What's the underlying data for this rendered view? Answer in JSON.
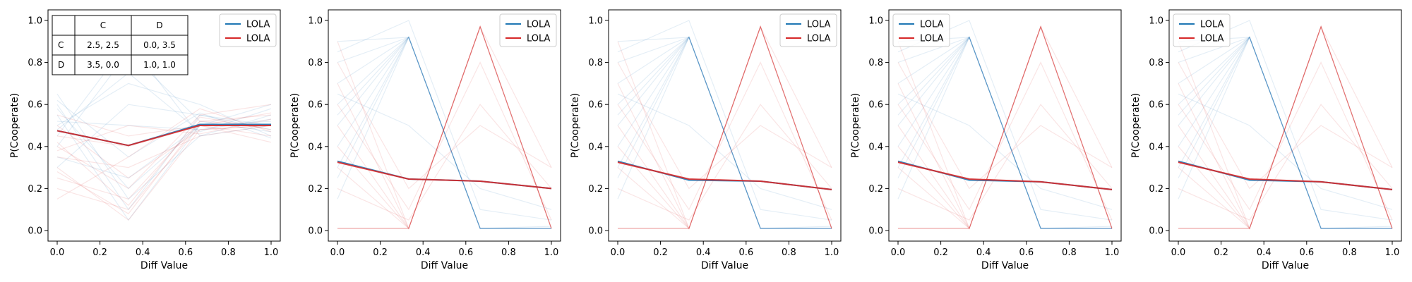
{
  "colors": {
    "blue": "#1f77b4",
    "red": "#d62728",
    "axis": "#000000"
  },
  "figure": {
    "panels": [
      {
        "ylabel": "P(Cooperate)",
        "xlabel": "Diff Value",
        "xticks": [
          "0.0",
          "0.2",
          "0.4",
          "0.6",
          "0.8",
          "1.0"
        ],
        "yticks": [
          "0.0",
          "0.2",
          "0.4",
          "0.6",
          "0.8",
          "1.0"
        ],
        "legend": [
          "LOLA",
          "LOLA"
        ]
      },
      {
        "ylabel": "P(Cooperate)",
        "xlabel": "Diff Value",
        "xticks": [
          "0.0",
          "0.2",
          "0.4",
          "0.6",
          "0.8",
          "1.0"
        ],
        "yticks": [
          "0.0",
          "0.2",
          "0.4",
          "0.6",
          "0.8",
          "1.0"
        ],
        "legend": [
          "LOLA",
          "LOLA"
        ]
      },
      {
        "ylabel": "P(Cooperate)",
        "xlabel": "Diff Value",
        "xticks": [
          "0.0",
          "0.2",
          "0.4",
          "0.6",
          "0.8",
          "1.0"
        ],
        "yticks": [
          "0.0",
          "0.2",
          "0.4",
          "0.6",
          "0.8",
          "1.0"
        ],
        "legend": [
          "LOLA",
          "LOLA"
        ]
      },
      {
        "ylabel": "P(Cooperate)",
        "xlabel": "Diff Value",
        "xticks": [
          "0.0",
          "0.2",
          "0.4",
          "0.6",
          "0.8",
          "1.0"
        ],
        "yticks": [
          "0.0",
          "0.2",
          "0.4",
          "0.6",
          "0.8",
          "1.0"
        ],
        "legend": [
          "LOLA",
          "LOLA"
        ]
      },
      {
        "ylabel": "P(Cooperate)",
        "xlabel": "Diff Value",
        "xticks": [
          "0.0",
          "0.2",
          "0.4",
          "0.6",
          "0.8",
          "1.0"
        ],
        "yticks": [
          "0.0",
          "0.2",
          "0.4",
          "0.6",
          "0.8",
          "1.0"
        ],
        "legend": [
          "LOLA",
          "LOLA"
        ]
      }
    ],
    "payoff_table": {
      "col_headers": [
        "C",
        "D"
      ],
      "rows": [
        {
          "label": "C",
          "cells": [
            "2.5, 2.5",
            "0.0, 3.5"
          ]
        },
        {
          "label": "D",
          "cells": [
            "3.5, 0.0",
            "1.0, 1.0"
          ]
        }
      ]
    }
  },
  "chart_data": [
    {
      "type": "line",
      "title": "",
      "xlabel": "Diff Value",
      "ylabel": "P(Cooperate)",
      "xlim": [
        0,
        1
      ],
      "ylim": [
        0,
        1
      ],
      "x": [
        0.0,
        0.333,
        0.667,
        1.0
      ],
      "legend_placement": "top-right",
      "series": [
        {
          "name": "LOLA",
          "color": "#1f77b4",
          "values": [
            0.475,
            0.405,
            0.505,
            0.505
          ]
        },
        {
          "name": "LOLA",
          "color": "#d62728",
          "values": [
            0.475,
            0.405,
            0.5,
            0.5
          ]
        }
      ],
      "faint_runs": {
        "blue": [
          [
            0.55,
            0.05,
            0.5,
            0.5
          ],
          [
            0.6,
            0.1,
            0.55,
            0.48
          ],
          [
            0.45,
            0.9,
            0.45,
            0.55
          ],
          [
            0.5,
            0.7,
            0.6,
            0.45
          ],
          [
            0.35,
            0.25,
            0.5,
            0.6
          ],
          [
            0.65,
            0.15,
            0.45,
            0.5
          ],
          [
            0.4,
            0.85,
            0.52,
            0.47
          ],
          [
            0.52,
            0.5,
            0.48,
            0.53
          ],
          [
            0.3,
            0.6,
            0.55,
            0.5
          ],
          [
            0.58,
            0.2,
            0.5,
            0.52
          ],
          [
            0.48,
            0.75,
            0.47,
            0.58
          ],
          [
            0.62,
            0.35,
            0.56,
            0.44
          ]
        ],
        "red": [
          [
            0.3,
            0.05,
            0.48,
            0.5
          ],
          [
            0.2,
            0.1,
            0.5,
            0.45
          ],
          [
            0.4,
            0.2,
            0.55,
            0.6
          ],
          [
            0.35,
            0.3,
            0.45,
            0.5
          ],
          [
            0.25,
            0.15,
            0.52,
            0.55
          ],
          [
            0.45,
            0.4,
            0.5,
            0.42
          ],
          [
            0.5,
            0.25,
            0.48,
            0.5
          ],
          [
            0.15,
            0.35,
            0.58,
            0.47
          ],
          [
            0.38,
            0.5,
            0.46,
            0.53
          ],
          [
            0.28,
            0.08,
            0.52,
            0.5
          ],
          [
            0.55,
            0.45,
            0.5,
            0.56
          ],
          [
            0.42,
            0.12,
            0.54,
            0.48
          ]
        ]
      },
      "inset_table": true
    },
    {
      "type": "line",
      "title": "",
      "xlabel": "Diff Value",
      "ylabel": "P(Cooperate)",
      "xlim": [
        0,
        1
      ],
      "ylim": [
        0,
        1
      ],
      "x": [
        0.0,
        0.333,
        0.667,
        1.0
      ],
      "legend_placement": "top-right",
      "series": [
        {
          "name": "LOLA",
          "color": "#1f77b4",
          "values": [
            0.33,
            0.245,
            0.235,
            0.2
          ]
        },
        {
          "name": "LOLA",
          "color": "#d62728",
          "values": [
            0.325,
            0.245,
            0.235,
            0.2
          ]
        }
      ],
      "faint_runs": {
        "blue": [
          [
            0.9,
            0.92,
            0.01,
            0.01
          ],
          [
            0.8,
            0.92,
            0.01,
            0.01
          ],
          [
            0.7,
            0.92,
            0.01,
            0.01
          ],
          [
            0.5,
            0.92,
            0.01,
            0.01
          ],
          [
            0.3,
            0.92,
            0.01,
            0.01
          ],
          [
            0.15,
            0.92,
            0.01,
            0.01
          ],
          [
            0.6,
            0.92,
            0.01,
            0.02
          ],
          [
            0.4,
            0.92,
            0.01,
            0.01
          ],
          [
            0.85,
            1.0,
            0.1,
            0.05
          ],
          [
            0.25,
            0.92,
            0.01,
            0.01
          ],
          [
            0.65,
            0.5,
            0.2,
            0.1
          ],
          [
            0.55,
            0.92,
            0.01,
            0.01
          ]
        ],
        "red": [
          [
            0.01,
            0.01,
            0.97,
            0.01
          ],
          [
            0.01,
            0.01,
            0.97,
            0.01
          ],
          [
            0.01,
            0.01,
            0.97,
            0.3
          ],
          [
            0.3,
            0.01,
            0.97,
            0.01
          ],
          [
            0.5,
            0.01,
            0.97,
            0.01
          ],
          [
            0.7,
            0.01,
            0.97,
            0.01
          ],
          [
            0.2,
            0.05,
            0.6,
            0.2
          ],
          [
            0.9,
            0.01,
            0.97,
            0.01
          ],
          [
            0.6,
            0.1,
            0.8,
            0.05
          ],
          [
            0.4,
            0.01,
            0.97,
            0.01
          ],
          [
            0.01,
            0.01,
            0.97,
            0.01
          ],
          [
            0.8,
            0.2,
            0.5,
            0.3
          ]
        ]
      }
    },
    {
      "type": "line",
      "title": "",
      "xlabel": "Diff Value",
      "ylabel": "P(Cooperate)",
      "xlim": [
        0,
        1
      ],
      "ylim": [
        0,
        1
      ],
      "x": [
        0.0,
        0.333,
        0.667,
        1.0
      ],
      "legend_placement": "top-right",
      "series": [
        {
          "name": "LOLA",
          "color": "#1f77b4",
          "values": [
            0.33,
            0.24,
            0.235,
            0.195
          ]
        },
        {
          "name": "LOLA",
          "color": "#d62728",
          "values": [
            0.325,
            0.245,
            0.235,
            0.195
          ]
        }
      ],
      "faint_runs": {
        "blue": [
          [
            0.9,
            0.92,
            0.01,
            0.01
          ],
          [
            0.8,
            0.92,
            0.01,
            0.01
          ],
          [
            0.7,
            0.92,
            0.01,
            0.01
          ],
          [
            0.5,
            0.92,
            0.01,
            0.01
          ],
          [
            0.3,
            0.92,
            0.01,
            0.01
          ],
          [
            0.15,
            0.92,
            0.01,
            0.01
          ],
          [
            0.6,
            0.92,
            0.01,
            0.02
          ],
          [
            0.4,
            0.92,
            0.01,
            0.01
          ],
          [
            0.85,
            1.0,
            0.1,
            0.05
          ],
          [
            0.25,
            0.92,
            0.01,
            0.01
          ],
          [
            0.65,
            0.5,
            0.2,
            0.1
          ],
          [
            0.55,
            0.92,
            0.01,
            0.01
          ]
        ],
        "red": [
          [
            0.01,
            0.01,
            0.97,
            0.01
          ],
          [
            0.01,
            0.01,
            0.97,
            0.01
          ],
          [
            0.01,
            0.01,
            0.97,
            0.3
          ],
          [
            0.3,
            0.01,
            0.97,
            0.01
          ],
          [
            0.5,
            0.01,
            0.97,
            0.01
          ],
          [
            0.7,
            0.01,
            0.97,
            0.01
          ],
          [
            0.2,
            0.05,
            0.6,
            0.2
          ],
          [
            0.9,
            0.01,
            0.97,
            0.01
          ],
          [
            0.6,
            0.1,
            0.8,
            0.05
          ],
          [
            0.4,
            0.01,
            0.97,
            0.01
          ],
          [
            0.01,
            0.01,
            0.97,
            0.01
          ],
          [
            0.8,
            0.2,
            0.5,
            0.3
          ]
        ]
      }
    },
    {
      "type": "line",
      "title": "",
      "xlabel": "Diff Value",
      "ylabel": "P(Cooperate)",
      "xlim": [
        0,
        1
      ],
      "ylim": [
        0,
        1
      ],
      "x": [
        0.0,
        0.333,
        0.667,
        1.0
      ],
      "legend_placement": "top-left",
      "series": [
        {
          "name": "LOLA",
          "color": "#1f77b4",
          "values": [
            0.33,
            0.24,
            0.232,
            0.195
          ]
        },
        {
          "name": "LOLA",
          "color": "#d62728",
          "values": [
            0.325,
            0.245,
            0.232,
            0.195
          ]
        }
      ],
      "faint_runs": {
        "blue": [
          [
            0.9,
            0.92,
            0.01,
            0.01
          ],
          [
            0.8,
            0.92,
            0.01,
            0.01
          ],
          [
            0.7,
            0.92,
            0.01,
            0.01
          ],
          [
            0.5,
            0.92,
            0.01,
            0.01
          ],
          [
            0.3,
            0.92,
            0.01,
            0.01
          ],
          [
            0.15,
            0.92,
            0.01,
            0.01
          ],
          [
            0.6,
            0.92,
            0.01,
            0.02
          ],
          [
            0.4,
            0.92,
            0.01,
            0.01
          ],
          [
            0.85,
            1.0,
            0.1,
            0.05
          ],
          [
            0.25,
            0.92,
            0.01,
            0.01
          ],
          [
            0.65,
            0.5,
            0.2,
            0.1
          ],
          [
            0.55,
            0.92,
            0.01,
            0.01
          ]
        ],
        "red": [
          [
            0.01,
            0.01,
            0.97,
            0.01
          ],
          [
            0.01,
            0.01,
            0.97,
            0.01
          ],
          [
            0.01,
            0.01,
            0.97,
            0.3
          ],
          [
            0.3,
            0.01,
            0.97,
            0.01
          ],
          [
            0.5,
            0.01,
            0.97,
            0.01
          ],
          [
            0.7,
            0.01,
            0.97,
            0.01
          ],
          [
            0.2,
            0.05,
            0.6,
            0.2
          ],
          [
            0.9,
            0.01,
            0.97,
            0.01
          ],
          [
            0.6,
            0.1,
            0.8,
            0.05
          ],
          [
            0.4,
            0.01,
            0.97,
            0.01
          ],
          [
            0.01,
            0.01,
            0.97,
            0.01
          ],
          [
            0.8,
            0.2,
            0.5,
            0.3
          ]
        ]
      }
    },
    {
      "type": "line",
      "title": "",
      "xlabel": "Diff Value",
      "ylabel": "P(Cooperate)",
      "xlim": [
        0,
        1
      ],
      "ylim": [
        0,
        1
      ],
      "x": [
        0.0,
        0.333,
        0.667,
        1.0
      ],
      "legend_placement": "top-left",
      "series": [
        {
          "name": "LOLA",
          "color": "#1f77b4",
          "values": [
            0.33,
            0.24,
            0.232,
            0.195
          ]
        },
        {
          "name": "LOLA",
          "color": "#d62728",
          "values": [
            0.325,
            0.245,
            0.232,
            0.195
          ]
        }
      ],
      "faint_runs": {
        "blue": [
          [
            0.9,
            0.92,
            0.01,
            0.01
          ],
          [
            0.8,
            0.92,
            0.01,
            0.01
          ],
          [
            0.7,
            0.92,
            0.01,
            0.01
          ],
          [
            0.5,
            0.92,
            0.01,
            0.01
          ],
          [
            0.3,
            0.92,
            0.01,
            0.01
          ],
          [
            0.15,
            0.92,
            0.01,
            0.01
          ],
          [
            0.6,
            0.92,
            0.01,
            0.02
          ],
          [
            0.4,
            0.92,
            0.01,
            0.01
          ],
          [
            0.85,
            1.0,
            0.1,
            0.05
          ],
          [
            0.25,
            0.92,
            0.01,
            0.01
          ],
          [
            0.65,
            0.5,
            0.2,
            0.1
          ],
          [
            0.55,
            0.92,
            0.01,
            0.01
          ]
        ],
        "red": [
          [
            0.01,
            0.01,
            0.97,
            0.01
          ],
          [
            0.01,
            0.01,
            0.97,
            0.01
          ],
          [
            0.01,
            0.01,
            0.97,
            0.3
          ],
          [
            0.3,
            0.01,
            0.97,
            0.01
          ],
          [
            0.5,
            0.01,
            0.97,
            0.01
          ],
          [
            0.7,
            0.01,
            0.97,
            0.01
          ],
          [
            0.2,
            0.05,
            0.6,
            0.2
          ],
          [
            0.9,
            0.01,
            0.97,
            0.01
          ],
          [
            0.6,
            0.1,
            0.8,
            0.05
          ],
          [
            0.4,
            0.01,
            0.97,
            0.01
          ],
          [
            0.01,
            0.01,
            0.97,
            0.01
          ],
          [
            0.8,
            0.2,
            0.5,
            0.3
          ]
        ]
      }
    }
  ]
}
